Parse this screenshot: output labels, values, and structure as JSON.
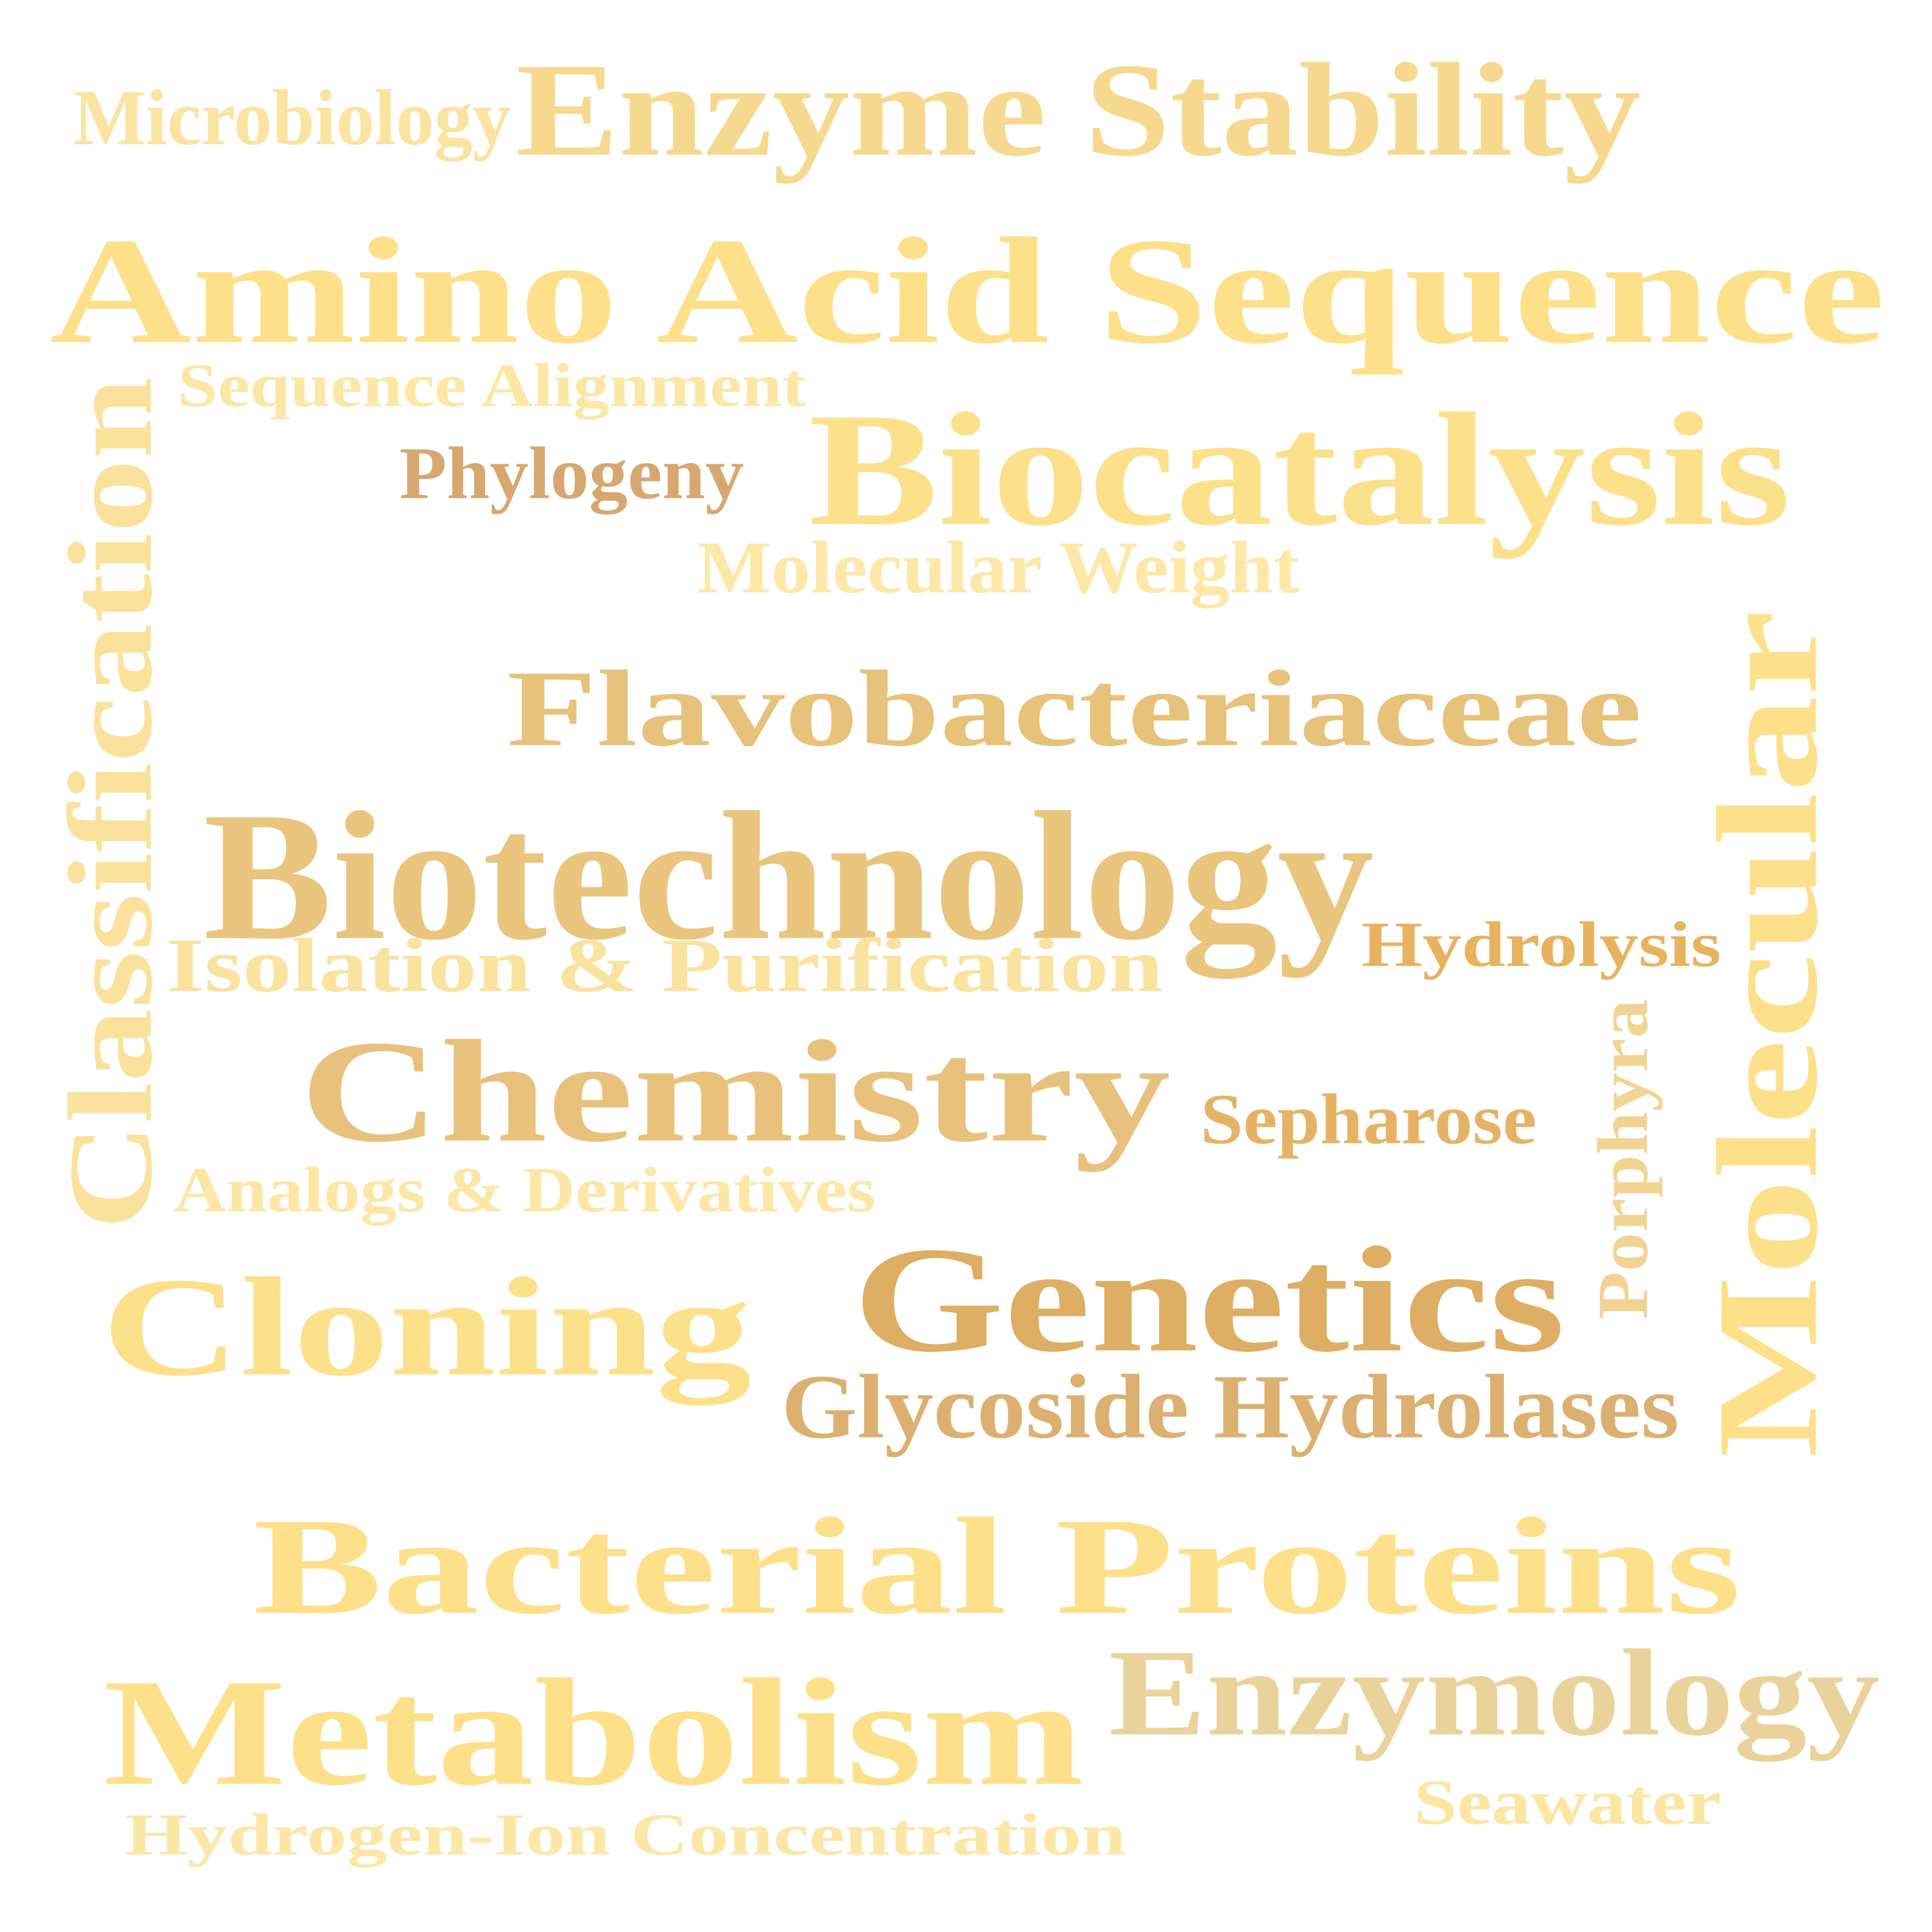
{
  "words": [
    {
      "text": "Microbiology",
      "color": "#fbe3a0"
    },
    {
      "text": "Enzyme Stability",
      "color": "#f6d98e"
    },
    {
      "text": "Amino Acid Sequence",
      "color": "#fde089"
    },
    {
      "text": "Sequence Alignment",
      "color": "#fde7a5"
    },
    {
      "text": "Classification",
      "color": "#fae29d"
    },
    {
      "text": "Phylogeny",
      "color": "#d6a870"
    },
    {
      "text": "Biocatalysis",
      "color": "#fde08a"
    },
    {
      "text": "Molecular Weight",
      "color": "#fde8a8"
    },
    {
      "text": "Flavobacteriaceae",
      "color": "#e6c27a"
    },
    {
      "text": "Molecular",
      "color": "#fde08a"
    },
    {
      "text": "Biotechnology",
      "color": "#e9c57e"
    },
    {
      "text": "Hydrolysis",
      "color": "#e7b35f"
    },
    {
      "text": "Isolation & Purification",
      "color": "#fae29f"
    },
    {
      "text": "Chemistry",
      "color": "#e8c27c"
    },
    {
      "text": "Sepharose",
      "color": "#e6b366"
    },
    {
      "text": "Porphyra",
      "color": "#f2d492"
    },
    {
      "text": "Analogs & Derivatives",
      "color": "#fde7a6"
    },
    {
      "text": "Cloning",
      "color": "#fde08a"
    },
    {
      "text": "Genetics",
      "color": "#ddae63"
    },
    {
      "text": "Glycoside Hydrolases",
      "color": "#dcb070"
    },
    {
      "text": "Bacterial Proteins",
      "color": "#fde089"
    },
    {
      "text": "Enzymology",
      "color": "#ead39a"
    },
    {
      "text": "Metabolism",
      "color": "#fde089"
    },
    {
      "text": "Seawater",
      "color": "#fde6a2"
    },
    {
      "text": "Hydrogen-Ion Concentration",
      "color": "#fde7a7"
    }
  ]
}
